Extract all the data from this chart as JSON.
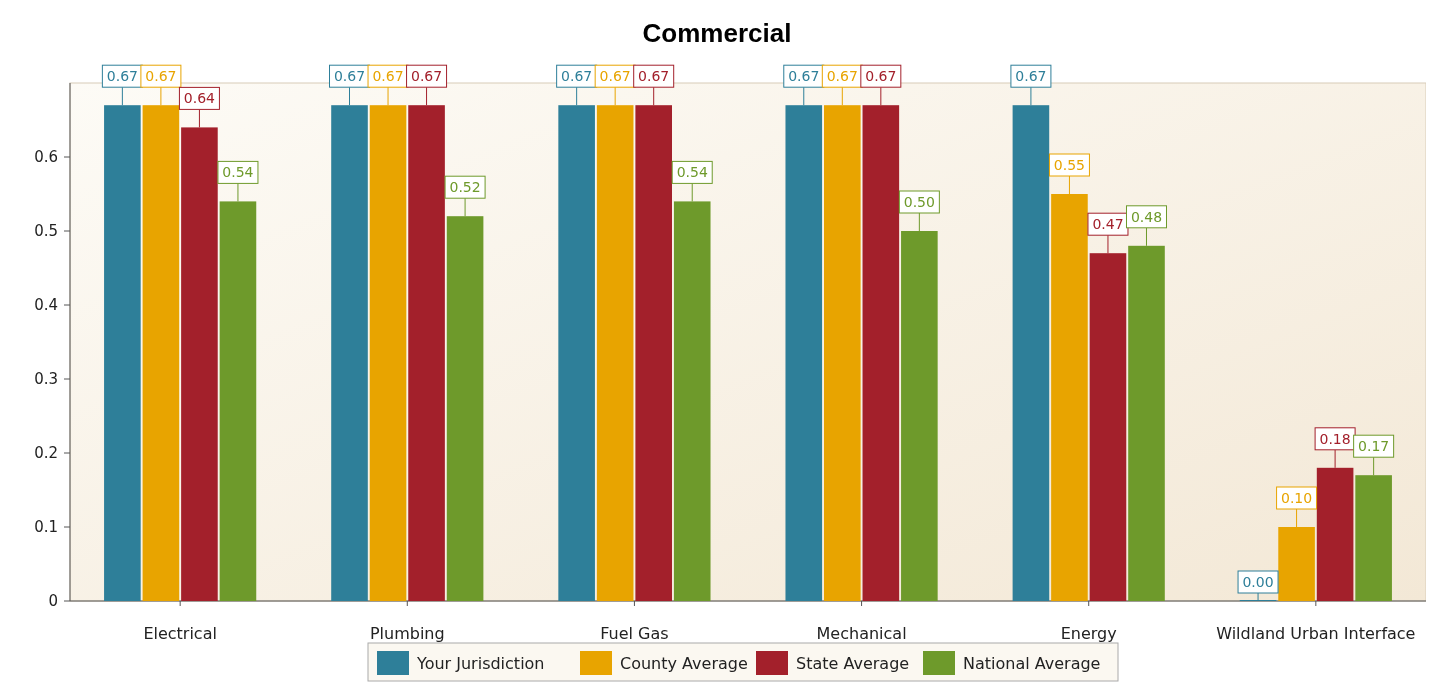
{
  "chart_data": {
    "type": "bar",
    "title": "Commercial",
    "categories": [
      "Electrical",
      "Plumbing",
      "Fuel Gas",
      "Mechanical",
      "Energy",
      "Wildland Urban Interface"
    ],
    "series": [
      {
        "name": "Your Jurisdiction",
        "color": "#2e7f99",
        "values": [
          0.67,
          0.67,
          0.67,
          0.67,
          0.67,
          0.0
        ],
        "value_labels": [
          "0.67",
          "0.67",
          "0.67",
          "0.67",
          "0.67",
          "0.00"
        ]
      },
      {
        "name": "County Average",
        "color": "#e8a400",
        "values": [
          0.67,
          0.67,
          0.67,
          0.67,
          0.55,
          0.1
        ],
        "value_labels": [
          "0.67",
          "0.67",
          "0.67",
          "0.67",
          "0.55",
          "0.10"
        ]
      },
      {
        "name": "State Average",
        "color": "#a3202b",
        "values": [
          0.64,
          0.67,
          0.67,
          0.67,
          0.47,
          0.18
        ],
        "value_labels": [
          "0.64",
          "0.67",
          "0.67",
          "0.67",
          "0.47",
          "0.18"
        ]
      },
      {
        "name": "National Average",
        "color": "#6e9a2b",
        "values": [
          0.54,
          0.52,
          0.54,
          0.5,
          0.48,
          0.17
        ],
        "value_labels": [
          "0.54",
          "0.52",
          "0.54",
          "0.50",
          "0.48",
          "0.17"
        ]
      }
    ],
    "ylim": [
      0,
      0.7
    ],
    "yticks": [
      0,
      0.1,
      0.2,
      0.3,
      0.4,
      0.5,
      0.6
    ],
    "grid": false,
    "legend": "bottom"
  }
}
